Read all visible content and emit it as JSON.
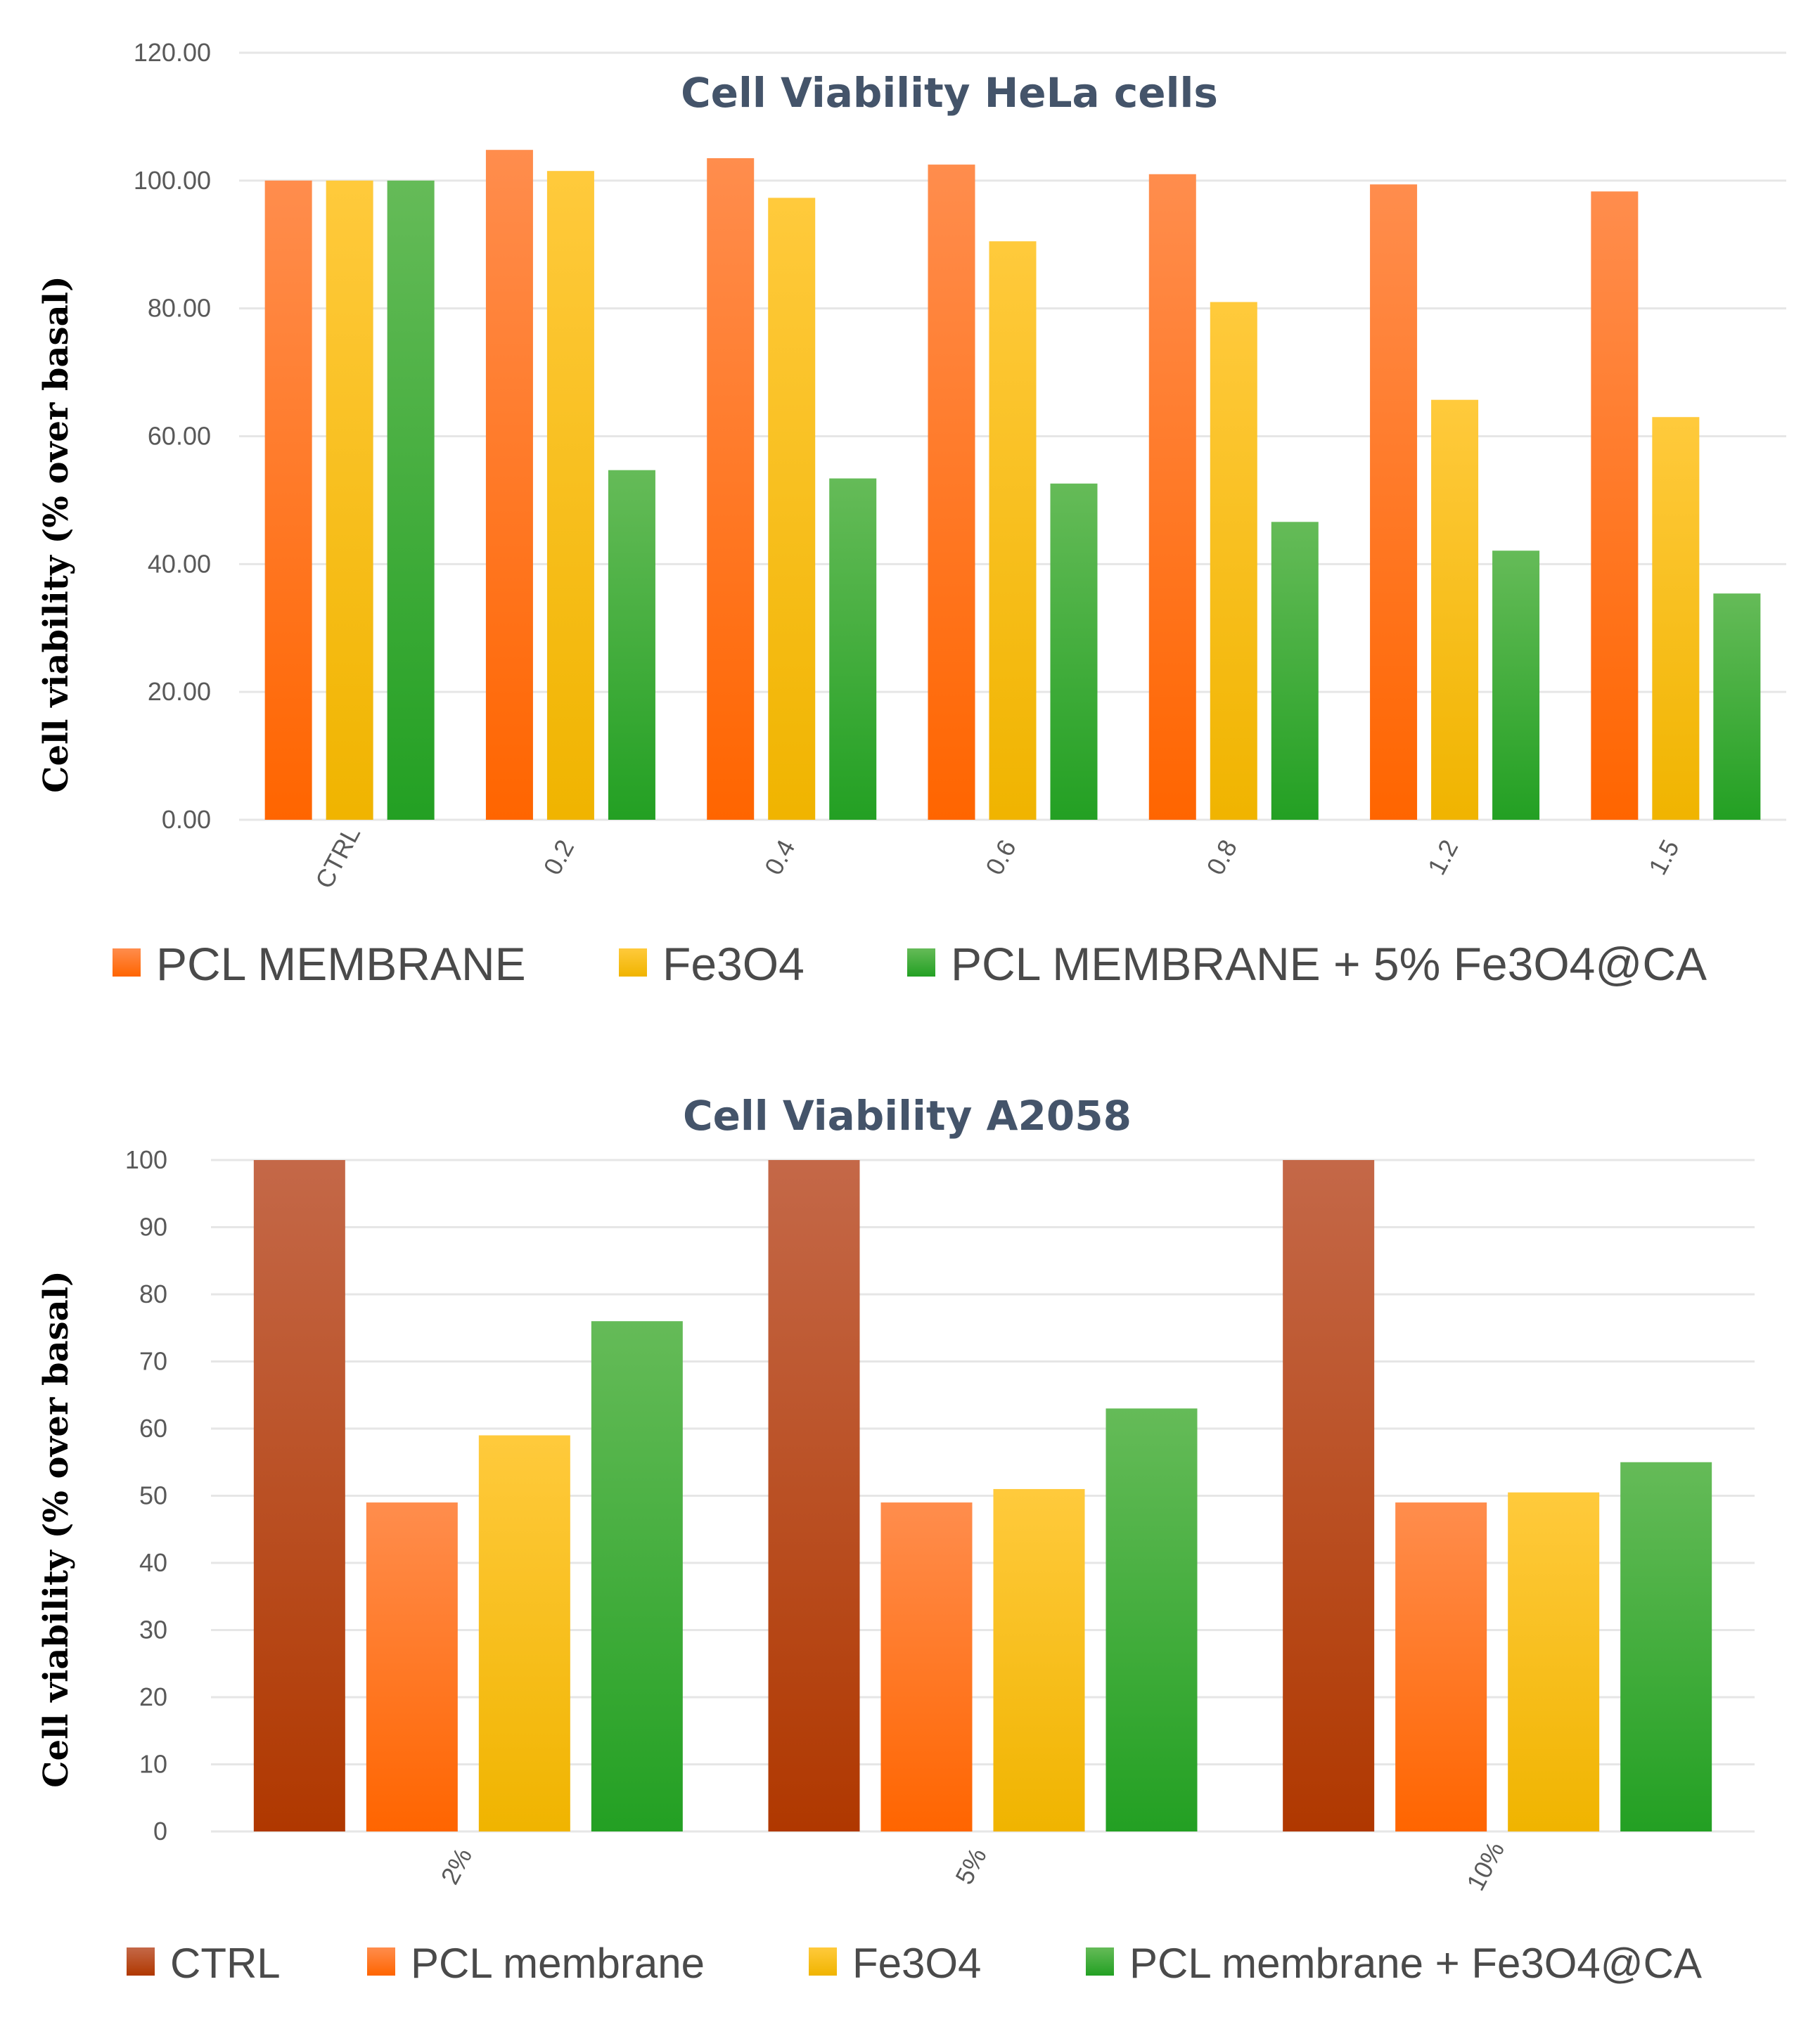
{
  "colors": {
    "orange_top": "#FF8D4D",
    "orange_bottom": "#FF6500",
    "yellow_top": "#FFCA3C",
    "yellow_bottom": "#F0B400",
    "green_top": "#65BB58",
    "green_bottom": "#23A023",
    "brown_top": "#C46848",
    "brown_bottom": "#B03800",
    "title": "#44546A",
    "tick_text": "#595959",
    "grid": "#E6E6E6"
  },
  "chart_data": [
    {
      "type": "bar",
      "title": "Cell Viability HeLa cells",
      "ylabel": "Cell viability (% over basal)",
      "xlabel": "",
      "ylim": [
        0,
        120
      ],
      "yticks": [
        "0.00",
        "20.00",
        "40.00",
        "60.00",
        "80.00",
        "100.00",
        "120.00"
      ],
      "grid": true,
      "legend_position": "bottom",
      "categories": [
        "CTRL",
        "0.2",
        "0.4",
        "0.6",
        "0.8",
        "1.2",
        "1.5"
      ],
      "series": [
        {
          "name": "PCL MEMBRANE",
          "color_key": "orange",
          "values": [
            100.0,
            104.8,
            103.5,
            102.5,
            101.0,
            99.4,
            98.3
          ]
        },
        {
          "name": "Fe3O4",
          "color_key": "yellow",
          "values": [
            100.0,
            101.5,
            97.3,
            90.5,
            81.0,
            65.7,
            63.0
          ]
        },
        {
          "name": "PCL MEMBRANE + 5% Fe3O4@CA",
          "color_key": "green",
          "values": [
            100.0,
            54.7,
            53.4,
            52.6,
            46.6,
            42.1,
            35.4
          ]
        }
      ]
    },
    {
      "type": "bar",
      "title": "Cell Viability A2058",
      "ylabel": "Cell viability (% over basal)",
      "xlabel": "",
      "ylim": [
        0,
        100
      ],
      "yticks": [
        "0",
        "10",
        "20",
        "30",
        "40",
        "50",
        "60",
        "70",
        "80",
        "90",
        "100"
      ],
      "grid": true,
      "legend_position": "bottom",
      "categories": [
        "2%",
        "5%",
        "10%"
      ],
      "series": [
        {
          "name": "CTRL",
          "color_key": "brown",
          "values": [
            100,
            100,
            100
          ]
        },
        {
          "name": "PCL membrane",
          "color_key": "orange",
          "values": [
            49,
            49,
            49
          ]
        },
        {
          "name": "Fe3O4",
          "color_key": "yellow",
          "values": [
            59,
            51,
            50.5
          ]
        },
        {
          "name": "PCL membrane + Fe3O4@CA",
          "color_key": "green",
          "values": [
            76,
            63,
            55
          ]
        }
      ]
    }
  ]
}
